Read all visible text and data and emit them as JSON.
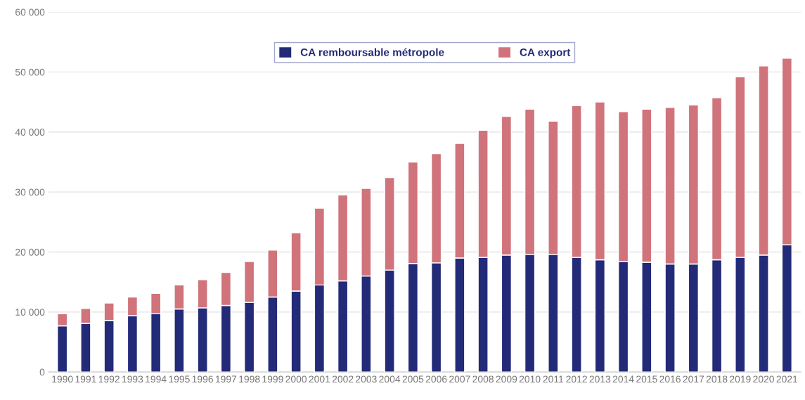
{
  "chart_data": {
    "type": "bar",
    "stacked": true,
    "categories": [
      "1990",
      "1991",
      "1992",
      "1993",
      "1994",
      "1995",
      "1996",
      "1997",
      "1998",
      "1999",
      "2000",
      "2001",
      "2002",
      "2003",
      "2004",
      "2005",
      "2006",
      "2007",
      "2008",
      "2009",
      "2010",
      "2011",
      "2012",
      "2013",
      "2014",
      "2015",
      "2016",
      "2017",
      "2018",
      "2019",
      "2020",
      "2021"
    ],
    "series": [
      {
        "name": "CA remboursable métropole",
        "color": "#232a78",
        "values": [
          7700,
          8100,
          8600,
          9400,
          9700,
          10500,
          10700,
          11100,
          11600,
          12500,
          13500,
          14500,
          15200,
          16000,
          17000,
          18100,
          18200,
          19000,
          19100,
          19500,
          19600,
          19600,
          19100,
          18700,
          18400,
          18300,
          18000,
          18000,
          18700,
          19100,
          19500,
          21200
        ]
      },
      {
        "name": "CA export",
        "color": "#d0737b",
        "values": [
          2000,
          2500,
          2900,
          3100,
          3400,
          4000,
          4700,
          5500,
          6800,
          7800,
          9700,
          12800,
          14300,
          14600,
          15400,
          16900,
          18200,
          19100,
          21200,
          23100,
          24200,
          22200,
          25300,
          26300,
          25000,
          25500,
          26100,
          26500,
          27000,
          30100,
          31500,
          31100
        ]
      }
    ],
    "ylim": [
      0,
      60000
    ],
    "yticks": [
      0,
      {
        "value": 10000,
        "label": "10 000"
      },
      {
        "value": 20000,
        "label": "20 000"
      },
      {
        "value": 30000,
        "label": "30 000"
      },
      {
        "value": 40000,
        "label": "40 000"
      },
      {
        "value": 50000,
        "label": "50 000"
      },
      {
        "value": 60000,
        "label": "60 000"
      }
    ],
    "grid": "y",
    "legend": "top"
  }
}
